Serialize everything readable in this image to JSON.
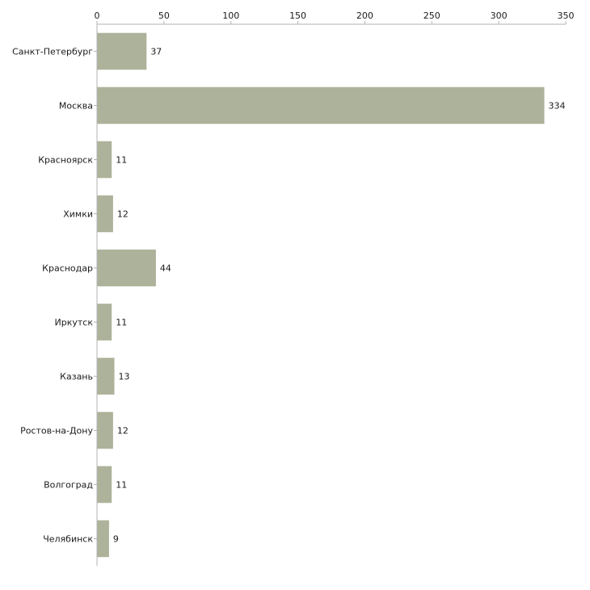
{
  "chart_data": {
    "type": "bar",
    "orientation": "horizontal",
    "title": "",
    "xlabel": "",
    "ylabel": "",
    "xlim": [
      0,
      350
    ],
    "x_ticks": [
      0,
      50,
      100,
      150,
      200,
      250,
      300,
      350
    ],
    "x_tick_labels": [
      "0",
      "50",
      "100",
      "150",
      "200",
      "250",
      "300",
      "350"
    ],
    "x_axis_position": "top",
    "grid": false,
    "legend": "none",
    "categories": [
      "Санкт-Петербург",
      "Москва",
      "Красноярск",
      "Химки",
      "Краснодар",
      "Иркутск",
      "Казань",
      "Ростов-на-Дону",
      "Волгоград",
      "Челябинск"
    ],
    "values": [
      37,
      334,
      11,
      12,
      44,
      11,
      13,
      12,
      11,
      9
    ],
    "value_labels": [
      "37",
      "334",
      "11",
      "12",
      "44",
      "11",
      "13",
      "12",
      "11",
      "9"
    ],
    "colors": {
      "bar": "#adb29a",
      "axis": "#b3b3b3",
      "text": "#1a1a1a"
    }
  }
}
